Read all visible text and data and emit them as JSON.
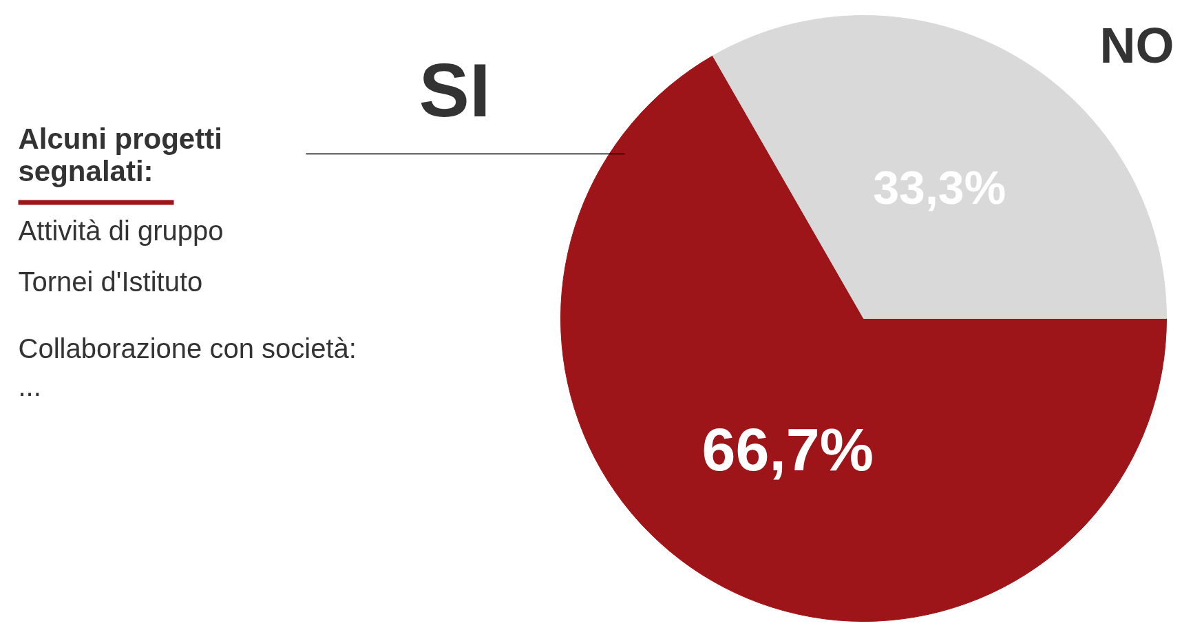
{
  "chart_data": {
    "type": "pie",
    "title": "Alcuni progetti segnalati:",
    "categories": [
      "SI",
      "NO"
    ],
    "values": [
      66.7,
      33.3
    ],
    "colors": [
      "#9e1519",
      "#d9d9d9"
    ],
    "value_labels": [
      "66,7%",
      "33,3%"
    ],
    "annotations": [
      "Attività di gruppo",
      "Tornei d'Istituto",
      "Collaborazione con società:",
      "..."
    ]
  }
}
